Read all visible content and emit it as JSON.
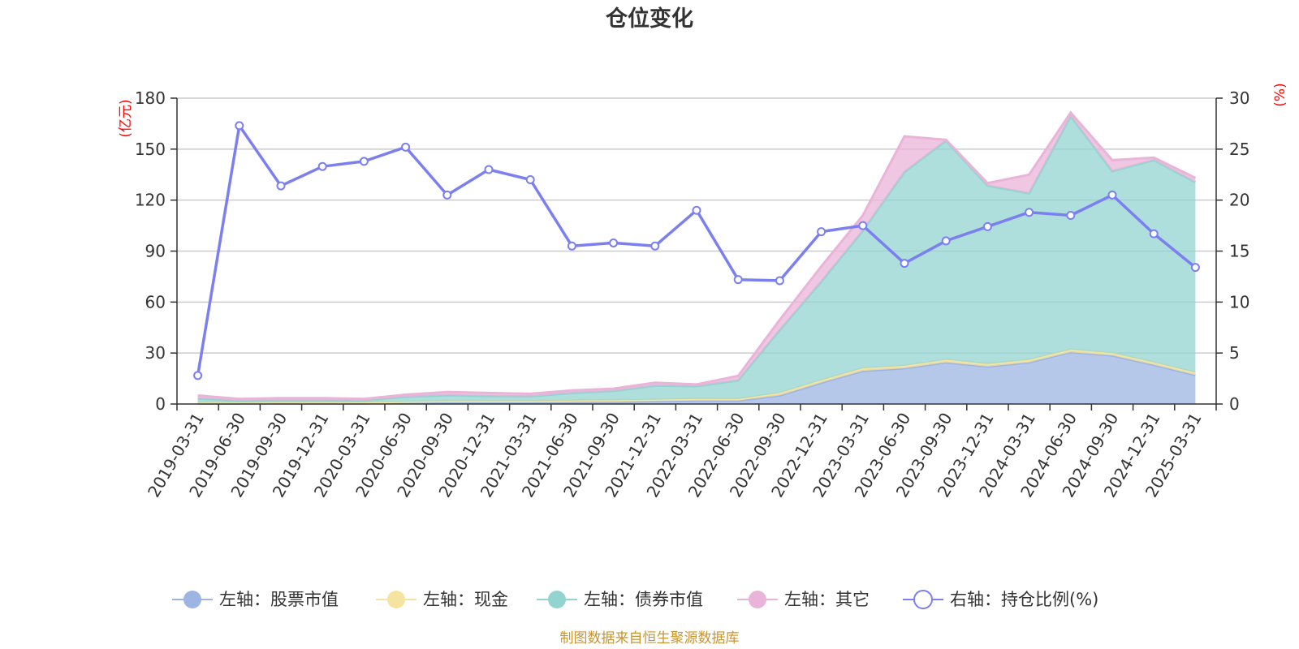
{
  "chart_data": {
    "type": "area",
    "title": "仓位变化",
    "source": "制图数据来自恒生聚源数据库",
    "left_axis": {
      "unit": "(亿元)",
      "ticks": [
        0,
        30,
        60,
        90,
        120,
        150,
        180
      ],
      "ylim": [
        0,
        180
      ]
    },
    "right_axis": {
      "unit": "(%)",
      "ticks": [
        0,
        5,
        10,
        15,
        20,
        25,
        30
      ],
      "ylim": [
        0,
        30
      ]
    },
    "categories": [
      "2019-03-31",
      "2019-06-30",
      "2019-09-30",
      "2019-12-31",
      "2020-03-31",
      "2020-06-30",
      "2020-09-30",
      "2020-12-31",
      "2021-03-31",
      "2021-06-30",
      "2021-09-30",
      "2021-12-31",
      "2022-03-31",
      "2022-06-30",
      "2022-09-30",
      "2022-12-31",
      "2023-03-31",
      "2023-06-30",
      "2023-09-30",
      "2023-12-31",
      "2024-03-31",
      "2024-06-30",
      "2024-09-30",
      "2024-12-31",
      "2025-03-31"
    ],
    "series": [
      {
        "name": "左轴：股票市值",
        "axis": "left",
        "stacked": true,
        "color": "#9db5e2",
        "values": [
          0.3,
          0.3,
          0.4,
          0.4,
          0.4,
          0.8,
          1.0,
          1.0,
          1.0,
          1.2,
          1.3,
          1.7,
          2.0,
          2.0,
          5.0,
          12.5,
          19.5,
          21.0,
          24.5,
          22.0,
          24.5,
          30.5,
          28.5,
          23.0,
          17.0
        ]
      },
      {
        "name": "左轴：现金",
        "axis": "left",
        "stacked": true,
        "color": "#f5e4a0",
        "values": [
          0.5,
          0.5,
          0.5,
          0.5,
          0.5,
          0.6,
          0.7,
          0.7,
          0.7,
          0.8,
          0.9,
          0.9,
          1.0,
          0.9,
          1.5,
          1.5,
          1.5,
          1.5,
          1.5,
          1.5,
          1.5,
          1.5,
          1.5,
          1.5,
          1.5
        ]
      },
      {
        "name": "左轴：债券市值",
        "axis": "left",
        "stacked": true,
        "color": "#93d4d1",
        "values": [
          2.5,
          1.2,
          1.5,
          1.5,
          1.3,
          2.8,
          3.5,
          3.0,
          2.8,
          4.5,
          5.5,
          8.2,
          7.5,
          11.0,
          37.0,
          58.0,
          81.0,
          114.0,
          129.0,
          105.0,
          98.0,
          137.5,
          107.0,
          119.0,
          112.0
        ]
      },
      {
        "name": "左轴：其它",
        "axis": "left",
        "stacked": true,
        "color": "#e9b4d8",
        "values": [
          1.7,
          1.0,
          1.1,
          1.1,
          0.8,
          1.3,
          1.8,
          1.8,
          1.5,
          1.5,
          1.3,
          1.7,
          1.0,
          2.6,
          6.0,
          9.0,
          9.0,
          21.0,
          0.5,
          1.5,
          11.0,
          2.0,
          6.5,
          1.5,
          2.5
        ]
      },
      {
        "name": "右轴：持仓比例(%)",
        "axis": "right",
        "type": "line",
        "color": "#7b7ff0",
        "values": [
          2.8,
          27.3,
          21.4,
          23.3,
          23.8,
          25.2,
          20.5,
          23.0,
          22.0,
          15.5,
          15.8,
          15.5,
          19.0,
          12.2,
          12.1,
          16.9,
          17.5,
          13.8,
          16.0,
          17.4,
          18.8,
          18.5,
          20.5,
          16.7,
          13.4
        ]
      }
    ]
  }
}
